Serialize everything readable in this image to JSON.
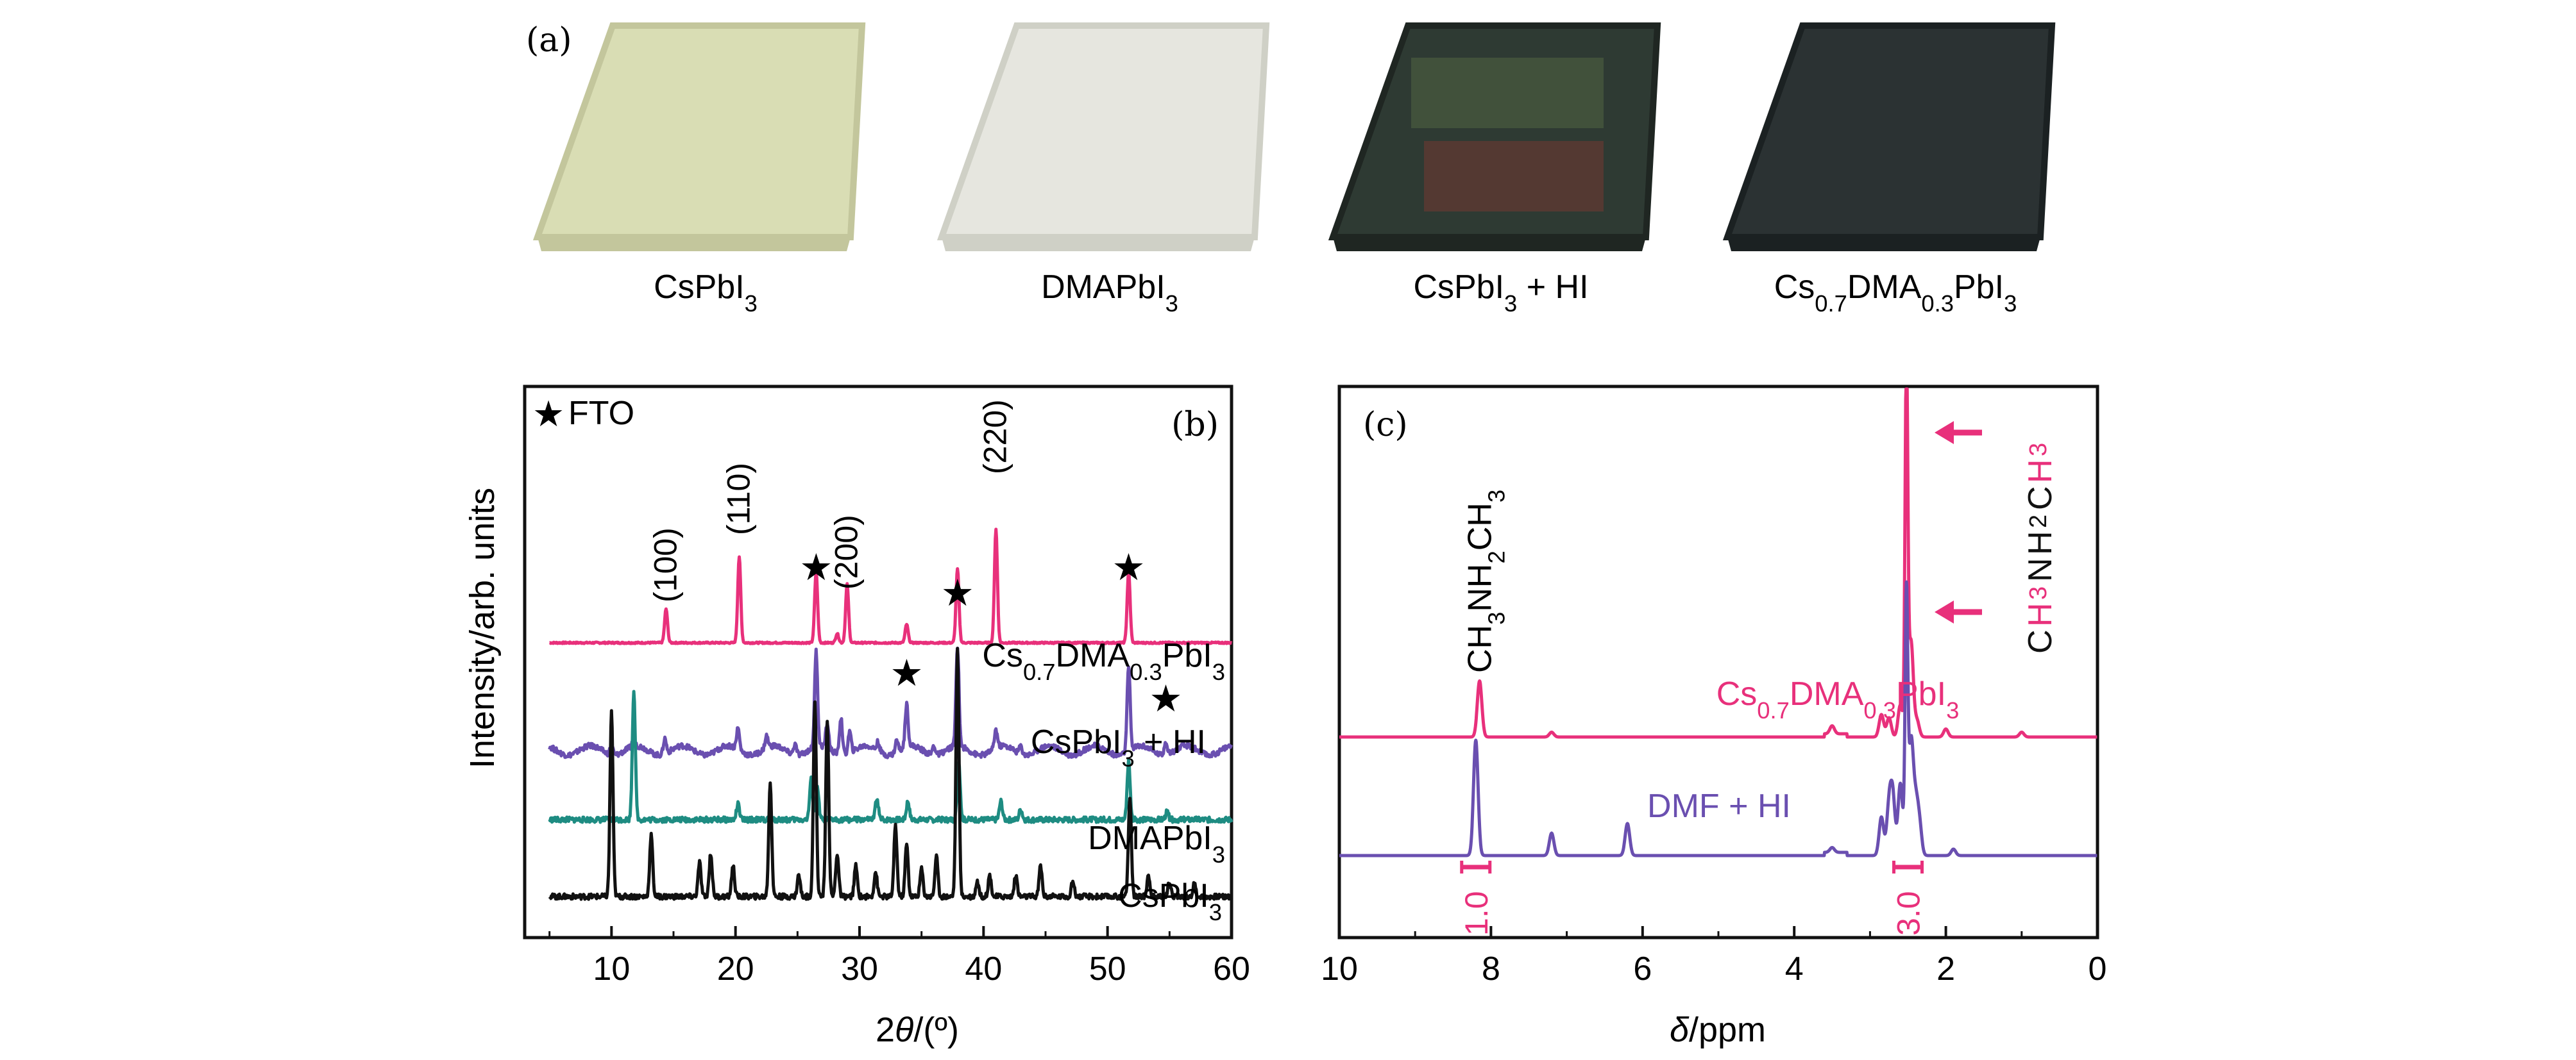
{
  "panel_a": {
    "label": "(a)",
    "samples": [
      {
        "name": "CsPbI",
        "sub": "3",
        "suffix": "",
        "color": "#d9ddb4",
        "edge": "#c3c69c",
        "inner": ""
      },
      {
        "name": "DMAPbI",
        "sub": "3",
        "suffix": "",
        "color": "#e6e6df",
        "edge": "#cfd0c6",
        "inner": ""
      },
      {
        "name": "CsPbI",
        "sub": "3",
        "suffix": " + HI",
        "color": "#2e3a33",
        "edge": "#1f2622",
        "inner": "#5a3a32"
      },
      {
        "name": "Cs0.7DMA0.3PbI3",
        "sub": "",
        "suffix": "",
        "color": "#2b3233",
        "edge": "#1b2122",
        "inner": ""
      }
    ]
  },
  "colors": {
    "cs07": "#e8307b",
    "cshi": "#6a4fb0",
    "dma": "#1e8c82",
    "cspbi": "#111111",
    "text": "#111111"
  },
  "chart_data": [
    {
      "type": "line",
      "panel": "(b)",
      "xlabel": "2θ/(º)",
      "ylabel": "Intensity/arb. units",
      "xlim": [
        3,
        60
      ],
      "xticks": [
        10,
        20,
        30,
        40,
        50,
        60
      ],
      "legend": "FTO",
      "legend_symbol": "★",
      "series": [
        {
          "name": "Cs0.7DMA0.3PbI3",
          "offset": 1.75,
          "peaks": [
            [
              14.4,
              0.22
            ],
            [
              20.3,
              0.56
            ],
            [
              26.5,
              0.46
            ],
            [
              28.2,
              0.06
            ],
            [
              29.0,
              0.38
            ],
            [
              33.8,
              0.12
            ],
            [
              37.9,
              0.48
            ],
            [
              41.0,
              0.74
            ],
            [
              51.7,
              0.46
            ]
          ]
        },
        {
          "name": "CsPbI3 + HI",
          "offset": 1.05,
          "peaks": [
            [
              10.0,
              0.06
            ],
            [
              11.8,
              0.05
            ],
            [
              14.3,
              0.1
            ],
            [
              20.2,
              0.14
            ],
            [
              22.5,
              0.08
            ],
            [
              24.8,
              0.07
            ],
            [
              26.5,
              0.62
            ],
            [
              27.4,
              0.16
            ],
            [
              28.5,
              0.24
            ],
            [
              29.2,
              0.14
            ],
            [
              31.5,
              0.06
            ],
            [
              33.0,
              0.08
            ],
            [
              33.8,
              0.28
            ],
            [
              36.0,
              0.06
            ],
            [
              37.9,
              0.65
            ],
            [
              41.0,
              0.12
            ],
            [
              43.0,
              0.05
            ],
            [
              51.7,
              0.55
            ],
            [
              54.7,
              0.09
            ]
          ]
        },
        {
          "name": "DMAPbI3",
          "offset": 0.6,
          "peaks": [
            [
              11.8,
              0.84
            ],
            [
              20.2,
              0.1
            ],
            [
              26.1,
              0.26
            ],
            [
              26.6,
              0.2
            ],
            [
              31.4,
              0.14
            ],
            [
              33.9,
              0.12
            ],
            [
              38.0,
              0.38
            ],
            [
              41.4,
              0.12
            ],
            [
              43.0,
              0.07
            ],
            [
              51.7,
              0.38
            ],
            [
              54.8,
              0.05
            ]
          ]
        },
        {
          "name": "CsPbI3",
          "offset": 0.1,
          "peaks": [
            [
              10.0,
              1.2
            ],
            [
              13.2,
              0.4
            ],
            [
              17.1,
              0.22
            ],
            [
              18.0,
              0.28
            ],
            [
              19.8,
              0.2
            ],
            [
              22.8,
              0.74
            ],
            [
              25.1,
              0.14
            ],
            [
              26.4,
              1.25
            ],
            [
              27.4,
              1.15
            ],
            [
              28.2,
              0.28
            ],
            [
              29.7,
              0.2
            ],
            [
              31.3,
              0.16
            ],
            [
              32.9,
              0.46
            ],
            [
              33.8,
              0.34
            ],
            [
              35.0,
              0.18
            ],
            [
              36.2,
              0.26
            ],
            [
              37.9,
              1.6
            ],
            [
              39.5,
              0.1
            ],
            [
              40.5,
              0.14
            ],
            [
              42.6,
              0.14
            ],
            [
              44.6,
              0.2
            ],
            [
              47.2,
              0.1
            ],
            [
              51.8,
              0.64
            ],
            [
              53.3,
              0.14
            ],
            [
              55.0,
              0.1
            ],
            [
              57.0,
              0.08
            ]
          ]
        }
      ],
      "reflections": [
        {
          "hkl": "(100)",
          "x": 14.4
        },
        {
          "hkl": "(110)",
          "x": 20.3
        },
        {
          "hkl": "(200)",
          "x": 29.0
        },
        {
          "hkl": "(220)",
          "x": 41.0
        }
      ],
      "fto_peaks": [
        26.5,
        33.8,
        37.9,
        51.7,
        54.7
      ]
    },
    {
      "type": "line",
      "panel": "(c)",
      "xlabel": "δ/ppm",
      "xlim": [
        10,
        0
      ],
      "xticks": [
        10,
        8,
        6,
        4,
        2,
        0
      ],
      "series": [
        {
          "name": "Cs0.7DMA0.3PbI3",
          "peaks": [
            [
              8.15,
              0.35
            ],
            [
              2.85,
              0.14
            ],
            [
              2.75,
              0.12
            ],
            [
              2.6,
              0.2
            ],
            [
              2.52,
              2.4
            ],
            [
              2.46,
              0.6
            ],
            [
              2.38,
              0.1
            ],
            [
              2.0,
              0.05
            ],
            [
              1.0,
              0.03
            ],
            [
              3.5,
              0.05
            ],
            [
              7.2,
              0.03
            ]
          ]
        },
        {
          "name": "DMF + HI",
          "peaks": [
            [
              8.2,
              0.72
            ],
            [
              7.2,
              0.14
            ],
            [
              6.2,
              0.2
            ],
            [
              2.85,
              0.24
            ],
            [
              2.75,
              0.3
            ],
            [
              2.7,
              0.36
            ],
            [
              2.6,
              0.45
            ],
            [
              2.52,
              1.6
            ],
            [
              2.46,
              0.7
            ],
            [
              2.4,
              0.3
            ],
            [
              2.35,
              0.2
            ],
            [
              3.5,
              0.03
            ],
            [
              1.9,
              0.04
            ]
          ]
        }
      ],
      "integrations": [
        {
          "label": "1.0",
          "x": 8.2
        },
        {
          "label": "3.0",
          "x": 2.5
        }
      ],
      "assignment": "CH3NH2CH3",
      "molecule_right": [
        "C",
        "H",
        "3",
        "N",
        "H",
        "2",
        "C",
        "H",
        "3"
      ]
    }
  ]
}
